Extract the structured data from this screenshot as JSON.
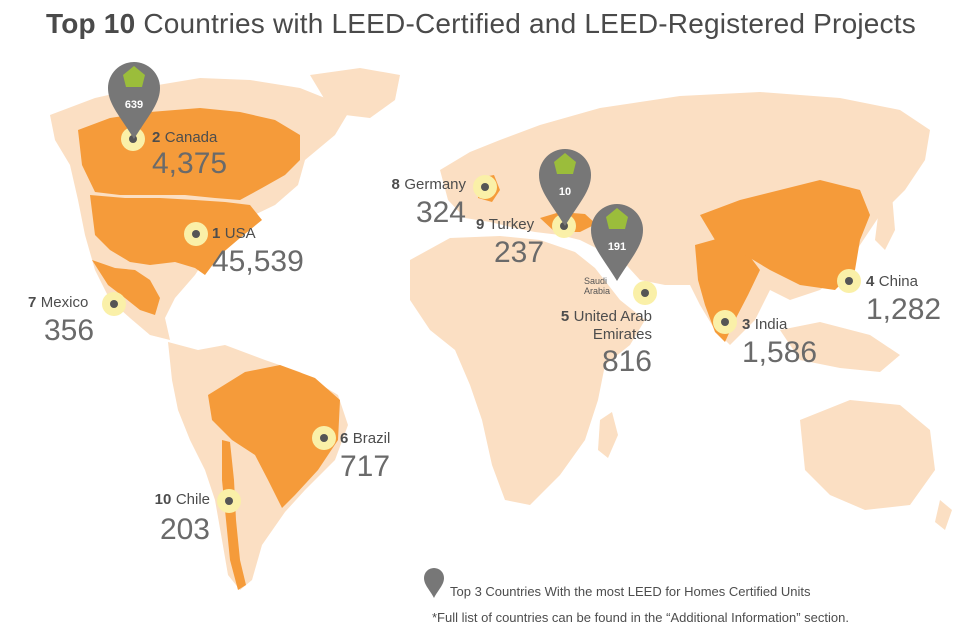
{
  "title": {
    "bold": "Top 10",
    "rest": " Countries with LEED-Certified and LEED-Registered Projects"
  },
  "colors": {
    "ocean": "#ffffff",
    "land": "#fbdfc3",
    "highlight": "#f59b3a",
    "pin": "#777777",
    "pin_house": "#9bbd3b",
    "marker_ring": "#faf0a8"
  },
  "countries": [
    {
      "rank": "1",
      "name": "USA",
      "value": "45,539"
    },
    {
      "rank": "2",
      "name": "Canada",
      "value": "4,375"
    },
    {
      "rank": "3",
      "name": "India",
      "value": "1,586"
    },
    {
      "rank": "4",
      "name": "China",
      "value": "1,282"
    },
    {
      "rank": "5",
      "name": "United Arab",
      "name2": "Emirates",
      "value": "816"
    },
    {
      "rank": "6",
      "name": "Brazil",
      "value": "717"
    },
    {
      "rank": "7",
      "name": "Mexico",
      "value": "356"
    },
    {
      "rank": "8",
      "name": "Germany",
      "value": "324"
    },
    {
      "rank": "9",
      "name": "Turkey",
      "value": "237"
    },
    {
      "rank": "10",
      "name": "Chile",
      "value": "203"
    }
  ],
  "pins": [
    {
      "country": "Canada",
      "value": "639"
    },
    {
      "country": "Turkey",
      "value": "10"
    },
    {
      "country": "Saudi Arabia",
      "value": "191"
    }
  ],
  "saudi_label": {
    "line1": "Saudi",
    "line2": "Arabia"
  },
  "legend": {
    "text": "Top 3 Countries With the most LEED for Homes Certified Units",
    "icon": "map-pin-icon"
  },
  "footnote": "*Full list of countries can be found in the “Additional Information” section."
}
